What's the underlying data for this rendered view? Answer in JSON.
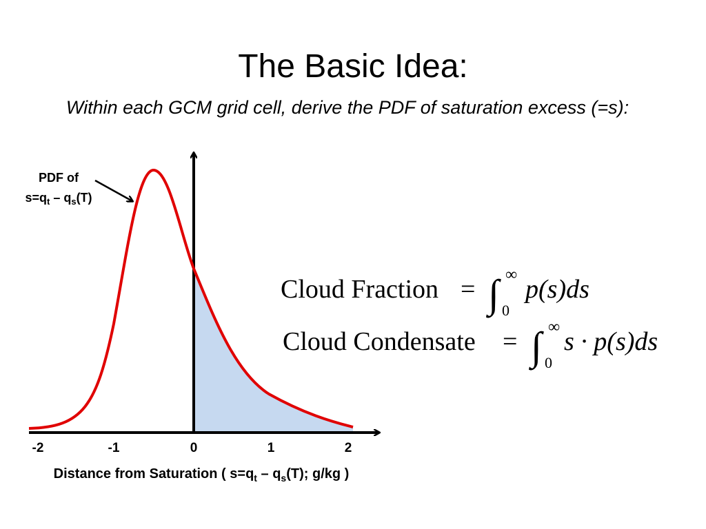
{
  "header": {
    "title": "The Basic Idea:",
    "subtitle": "Within each GCM grid cell, derive the PDF of saturation excess (=s):"
  },
  "figure": {
    "ticks": [
      "-2",
      "-1",
      "0",
      "1",
      "2"
    ],
    "axis_label": [
      "Distance from Saturation ( s=q",
      "t",
      " – q",
      "s",
      "(T); g/kg )"
    ],
    "annotation": {
      "line1": "PDF of",
      "line2": [
        "s=q",
        "t",
        " – q",
        "s",
        "(T)"
      ]
    }
  },
  "equations": [
    {
      "lhs": "Cloud Fraction",
      "equals": "=",
      "integral": "∫",
      "upper": "∞",
      "lower": "0",
      "integrand": "p(s)ds"
    },
    {
      "lhs": "Cloud Condensate",
      "equals": "=",
      "integral": "∫",
      "upper": "∞",
      "lower": "0",
      "integrand": "s · p(s)ds"
    }
  ]
}
